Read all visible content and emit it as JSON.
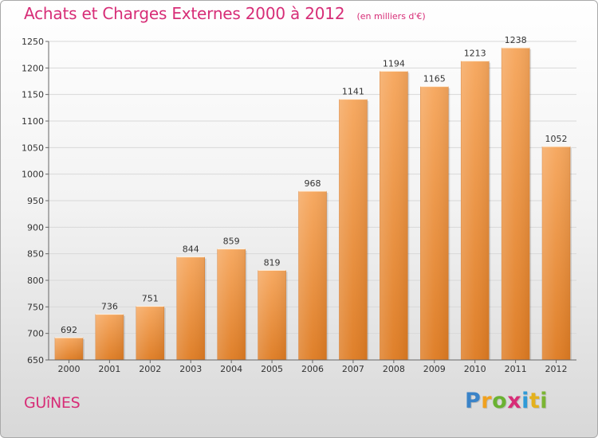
{
  "header": {
    "title": "Achats et Charges Externes 2000 à 2012",
    "subtitle": "(en milliers d'€)"
  },
  "footer": {
    "city": "GUîNES",
    "brand": {
      "p": "P",
      "r": "r",
      "o": "o",
      "x": "x",
      "i1": "i",
      "t": "t",
      "i2": "i"
    }
  },
  "colors": {
    "title": "#d72d77",
    "bar_light": "#f6a65c",
    "bar_dark": "#e07f28",
    "axis": "#555555",
    "grid": "#d0d0d0"
  },
  "chart_data": {
    "type": "bar",
    "title": "Achats et Charges Externes 2000 à 2012",
    "subtitle": "(en milliers d'€)",
    "categories": [
      "2000",
      "2001",
      "2002",
      "2003",
      "2004",
      "2005",
      "2006",
      "2007",
      "2008",
      "2009",
      "2010",
      "2011",
      "2012"
    ],
    "values": [
      692,
      736,
      751,
      844,
      859,
      819,
      968,
      1141,
      1194,
      1165,
      1213,
      1238,
      1052
    ],
    "ylim": [
      650,
      1250
    ],
    "yticks": [
      650,
      700,
      750,
      800,
      850,
      900,
      950,
      1000,
      1050,
      1100,
      1150,
      1200,
      1250
    ],
    "xlabel": "",
    "ylabel": "",
    "grid": true
  }
}
